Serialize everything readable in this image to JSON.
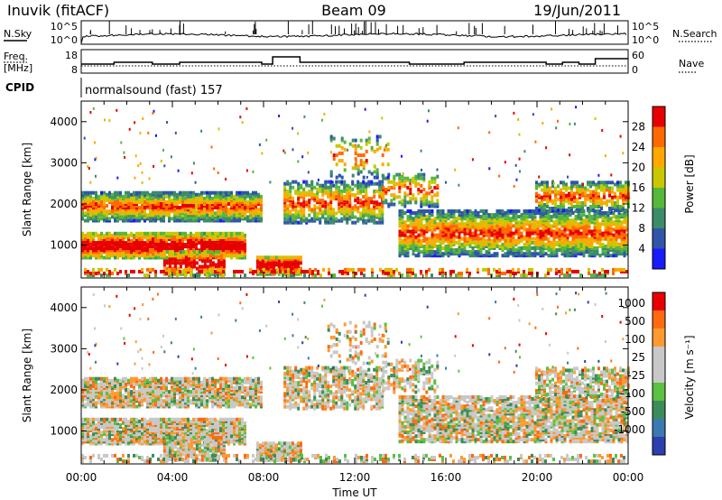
{
  "header": {
    "station": "Inuvik (fitACF)",
    "beam": "Beam 09",
    "date": "19/Jun/2011"
  },
  "panels": {
    "nsky": {
      "label": "N.Sky",
      "right_label": "N.Search",
      "left_ticks": [
        "10^5",
        "10^0"
      ],
      "right_ticks": [
        "10^5",
        "10^0"
      ]
    },
    "freq": {
      "label_line1": "Freq.",
      "label_line2": "[MHz]",
      "right_label": "Nave",
      "left_ticks": [
        "18",
        "8"
      ],
      "right_ticks": [
        "60",
        "0"
      ]
    },
    "cpid": {
      "label": "CPID",
      "value": "normalsound (fast) 157"
    }
  },
  "chart_data": [
    {
      "type": "heatmap",
      "title": "",
      "xlabel": "Time UT",
      "ylabel": "Slant Range [km]",
      "x_ticks": [
        "00:00",
        "04:00",
        "08:00",
        "12:00",
        "16:00",
        "20:00",
        "00:00"
      ],
      "y_ticks": [
        "1000",
        "2000",
        "3000",
        "4000"
      ],
      "ylim": [
        200,
        4500
      ],
      "colorbar": {
        "label": "Power [dB]",
        "ticks": [
          "4",
          "8",
          "12",
          "16",
          "20",
          "24",
          "28"
        ],
        "colors": [
          "#1a1aff",
          "#2f56a8",
          "#3c8c6a",
          "#55b83a",
          "#c8c800",
          "#ffa800",
          "#ff6a00",
          "#e80000"
        ]
      }
    },
    {
      "type": "heatmap",
      "title": "",
      "xlabel": "Time UT",
      "ylabel": "Slant Range [km]",
      "x_ticks": [
        "00:00",
        "04:00",
        "08:00",
        "12:00",
        "16:00",
        "20:00",
        "00:00"
      ],
      "y_ticks": [
        "1000",
        "2000",
        "3000",
        "4000"
      ],
      "ylim": [
        200,
        4500
      ],
      "colorbar": {
        "label": "Velocity [m s⁻¹]",
        "ticks": [
          "1000",
          "500",
          "100",
          "25",
          "-25",
          "-100",
          "-500",
          "-1000"
        ],
        "colors": [
          "#2b3fb0",
          "#3a7ab0",
          "#3c8c5a",
          "#5cc040",
          "#c8c8c8",
          "#c8c8c8",
          "#ff9a30",
          "#ff6a10",
          "#e80000"
        ]
      }
    }
  ]
}
